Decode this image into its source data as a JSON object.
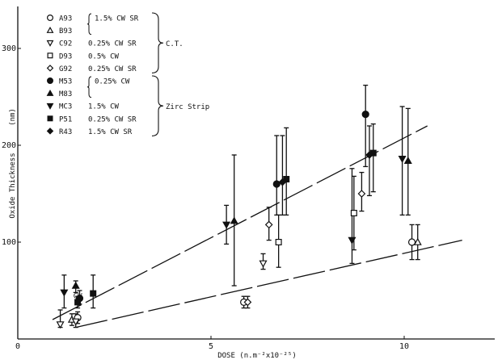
{
  "chart_data": {
    "type": "scatter",
    "title": "",
    "xlabel": "DOSE (n.m⁻²x10⁻²⁵)",
    "ylabel": "Oxide Thickness",
    "yunit": "(nm)",
    "xlim": [
      0,
      12.5
    ],
    "ylim": [
      0,
      350
    ],
    "xticks": [
      0,
      5,
      10
    ],
    "yticks": [
      100,
      200,
      300
    ],
    "grid": false,
    "legend_position": "top-left",
    "legend_groups": [
      {
        "label": "C.T.",
        "members": [
          "A93",
          "B93",
          "C92",
          "D93",
          "G92"
        ]
      },
      {
        "label": "Zirc Strip",
        "members": [
          "M53",
          "M83",
          "MC3",
          "P51",
          "R43"
        ]
      }
    ],
    "series": [
      {
        "name": "A93",
        "marker": "circle-open",
        "note": "1.5% CW SR",
        "points": [
          {
            "x": 1.55,
            "y": 22,
            "lo": 16,
            "hi": 28
          },
          {
            "x": 5.85,
            "y": 38,
            "lo": 32,
            "hi": 44
          },
          {
            "x": 10.2,
            "y": 100,
            "lo": 82,
            "hi": 118
          }
        ]
      },
      {
        "name": "B93",
        "marker": "triangle-open",
        "note": "1.5% CW SR",
        "points": [
          {
            "x": 1.4,
            "y": 20,
            "lo": 14,
            "hi": 26
          },
          {
            "x": 10.35,
            "y": 100,
            "lo": 82,
            "hi": 118
          }
        ]
      },
      {
        "name": "C92",
        "marker": "triangle-down-open",
        "note": "0.25% CW SR",
        "points": [
          {
            "x": 1.1,
            "y": 15,
            "lo": 12,
            "hi": 30
          },
          {
            "x": 1.5,
            "y": 18,
            "lo": 12,
            "hi": 26
          },
          {
            "x": 6.35,
            "y": 78,
            "lo": 72,
            "hi": 88
          }
        ]
      },
      {
        "name": "D93",
        "marker": "square-open",
        "note": "0.5% CW",
        "points": [
          {
            "x": 6.75,
            "y": 100,
            "lo": 74,
            "hi": 128
          },
          {
            "x": 8.7,
            "y": 130,
            "lo": 92,
            "hi": 168
          }
        ]
      },
      {
        "name": "G92",
        "marker": "diamond-open",
        "note": "0.25% CW SR",
        "points": [
          {
            "x": 5.95,
            "y": 38,
            "lo": 32,
            "hi": 44
          },
          {
            "x": 6.5,
            "y": 118,
            "lo": 102,
            "hi": 136
          },
          {
            "x": 8.9,
            "y": 150,
            "lo": 132,
            "hi": 172
          }
        ]
      },
      {
        "name": "M53",
        "marker": "circle-filled",
        "note": "0.25% CW",
        "points": [
          {
            "x": 1.6,
            "y": 42,
            "lo": 36,
            "hi": 50
          },
          {
            "x": 6.7,
            "y": 160,
            "lo": 128,
            "hi": 210
          },
          {
            "x": 9.0,
            "y": 232,
            "lo": 178,
            "hi": 262
          }
        ]
      },
      {
        "name": "M83",
        "marker": "triangle-filled",
        "note": "0.25% CW",
        "points": [
          {
            "x": 1.5,
            "y": 55,
            "lo": 48,
            "hi": 60
          },
          {
            "x": 5.6,
            "y": 122,
            "lo": 55,
            "hi": 190
          },
          {
            "x": 10.1,
            "y": 184,
            "lo": 128,
            "hi": 238
          }
        ]
      },
      {
        "name": "MC3",
        "marker": "triangle-down-filled",
        "note": "1.5% CW",
        "points": [
          {
            "x": 1.2,
            "y": 48,
            "lo": 32,
            "hi": 66
          },
          {
            "x": 5.4,
            "y": 118,
            "lo": 98,
            "hi": 138
          },
          {
            "x": 8.65,
            "y": 102,
            "lo": 78,
            "hi": 176
          },
          {
            "x": 9.95,
            "y": 186,
            "lo": 128,
            "hi": 240
          }
        ]
      },
      {
        "name": "P51",
        "marker": "square-filled",
        "note": "0.25% CW SR",
        "points": [
          {
            "x": 1.55,
            "y": 38,
            "lo": 32,
            "hi": 44
          },
          {
            "x": 1.95,
            "y": 47,
            "lo": 32,
            "hi": 66
          },
          {
            "x": 6.95,
            "y": 165,
            "lo": 128,
            "hi": 218
          },
          {
            "x": 9.2,
            "y": 192,
            "lo": 152,
            "hi": 222
          }
        ]
      },
      {
        "name": "R43",
        "marker": "diamond-filled",
        "note": "1.5% CW SR",
        "points": [
          {
            "x": 6.85,
            "y": 162,
            "lo": 128,
            "hi": 210
          },
          {
            "x": 9.1,
            "y": 190,
            "lo": 148,
            "hi": 220
          }
        ]
      }
    ],
    "fit_lines": [
      {
        "name": "upper",
        "x": [
          0.9,
          10.6
        ],
        "y": [
          20,
          220
        ]
      },
      {
        "name": "lower",
        "x": [
          1.5,
          11.5
        ],
        "y": [
          12,
          102
        ]
      }
    ],
    "annotations": [
      {
        "text": "CW",
        "x": 1.55,
        "y": 42
      }
    ]
  },
  "legend": [
    {
      "code": "A93",
      "note": "1.5% CW SR",
      "marker": "circle-open"
    },
    {
      "code": "B93",
      "note": "",
      "marker": "triangle-open"
    },
    {
      "code": "C92",
      "note": "0.25% CW SR",
      "marker": "triangle-down-open"
    },
    {
      "code": "D93",
      "note": "0.5% CW",
      "marker": "square-open"
    },
    {
      "code": "G92",
      "note": "0.25% CW SR",
      "marker": "diamond-open"
    },
    {
      "code": "M53",
      "note": "0.25% CW",
      "marker": "circle-filled"
    },
    {
      "code": "M83",
      "note": "",
      "marker": "triangle-filled"
    },
    {
      "code": "MC3",
      "note": "1.5% CW",
      "marker": "triangle-down-filled"
    },
    {
      "code": "P51",
      "note": "0.25% CW SR",
      "marker": "square-filled"
    },
    {
      "code": "R43",
      "note": "1.5% CW SR",
      "marker": "diamond-filled"
    }
  ]
}
